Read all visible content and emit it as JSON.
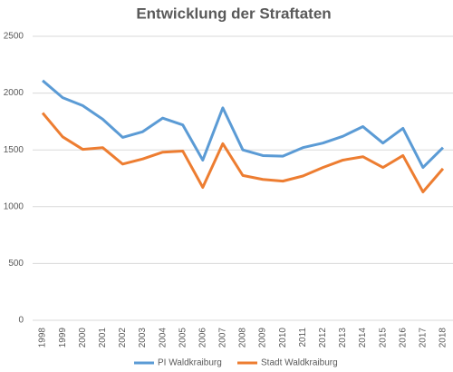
{
  "chart_data": {
    "type": "line",
    "title": "Entwicklung der Straftaten",
    "categories": [
      "1998",
      "1999",
      "2000",
      "2001",
      "2002",
      "2003",
      "2004",
      "2005",
      "2006",
      "2007",
      "2008",
      "2009",
      "2010",
      "2011",
      "2012",
      "2013",
      "2014",
      "2015",
      "2016",
      "2017",
      "2018"
    ],
    "series": [
      {
        "name": "PI Waldkraiburg",
        "color": "#5b9bd5",
        "values": [
          2110,
          1960,
          1890,
          1770,
          1610,
          1660,
          1780,
          1720,
          1410,
          1870,
          1500,
          1450,
          1445,
          1520,
          1560,
          1620,
          1705,
          1560,
          1690,
          1345,
          1520
        ]
      },
      {
        "name": "Stadt Waldkraiburg",
        "color": "#ed7d31",
        "values": [
          1825,
          1615,
          1505,
          1520,
          1375,
          1420,
          1480,
          1490,
          1170,
          1555,
          1275,
          1240,
          1225,
          1270,
          1345,
          1410,
          1440,
          1345,
          1450,
          1130,
          1335
        ]
      }
    ],
    "ylim": [
      0,
      2500
    ],
    "yticks": [
      0,
      500,
      1000,
      1500,
      2000,
      2500
    ],
    "grid": true,
    "legend": "bottom"
  }
}
